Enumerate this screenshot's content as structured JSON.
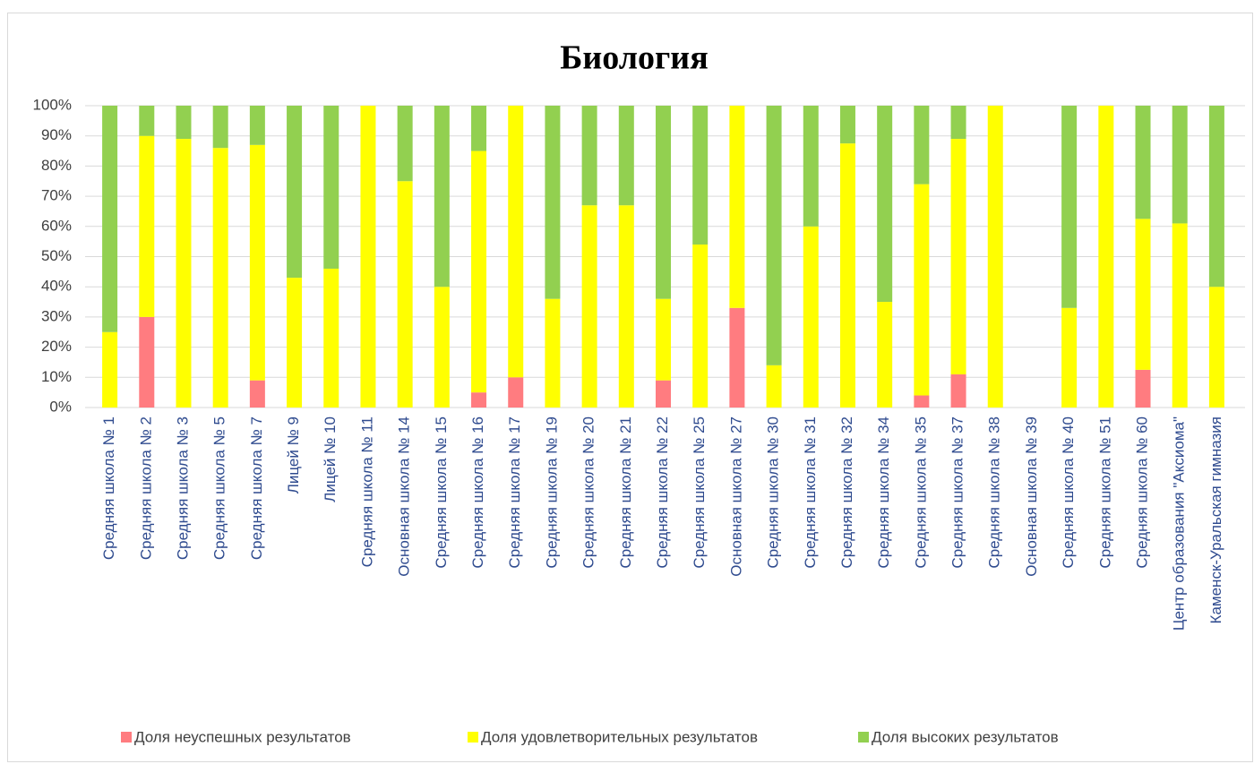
{
  "chart_data": {
    "type": "stacked_bar",
    "title": "Биология",
    "categories": [
      "Средняя школа № 1",
      "Средняя школа № 2",
      "Средняя школа № 3",
      "Средняя школа № 5",
      "Средняя школа № 7",
      "Лицей № 9",
      "Лицей № 10",
      "Средняя школа № 11",
      "Основная школа № 14",
      "Средняя школа № 15",
      "Средняя школа № 16",
      "Средняя школа № 17",
      "Средняя школа № 19",
      "Средняя школа № 20",
      "Средняя школа № 21",
      "Средняя школа № 22",
      "Средняя школа № 25",
      "Основная школа № 27",
      "Средняя школа № 30",
      "Средняя школа № 31",
      "Средняя школа № 32",
      "Средняя школа № 34",
      "Средняя школа № 35",
      "Средняя школа № 37",
      "Средняя школа № 38",
      "Основная школа № 39",
      "Средняя школа № 40",
      "Средняя школа № 51",
      "Средняя школа № 60",
      "Центр образования \"Аксиома\"",
      "Каменск-Уральская гимназия"
    ],
    "series": [
      {
        "name": "Доля неуспешных результатов",
        "color": "#ff7c80",
        "values": [
          0,
          30,
          0,
          0,
          9,
          0,
          0,
          0,
          0,
          0,
          5,
          10,
          0,
          0,
          0,
          9,
          0,
          33,
          0,
          0,
          0,
          0,
          4,
          11,
          0,
          0,
          0,
          0,
          12.5,
          0,
          0
        ]
      },
      {
        "name": "Доля удовлетворительных результатов",
        "color": "#ffff00",
        "values": [
          25,
          60,
          89,
          86,
          78,
          43,
          46,
          100,
          75,
          40,
          80,
          90,
          36,
          67,
          67,
          27,
          54,
          67,
          14,
          60,
          87.5,
          35,
          70,
          78,
          100,
          0,
          33,
          100,
          50,
          61,
          40
        ]
      },
      {
        "name": "Доля высоких результатов",
        "color": "#92d050",
        "values": [
          75,
          10,
          11,
          14,
          13,
          57,
          54,
          0,
          25,
          60,
          15,
          0,
          64,
          33,
          33,
          64,
          46,
          0,
          86,
          40,
          12.5,
          65,
          26,
          11,
          0,
          0,
          67,
          0,
          37.5,
          39,
          60
        ]
      }
    ],
    "ylim": [
      0,
      100
    ],
    "yticks": [
      {
        "value": 0,
        "label": "0%"
      },
      {
        "value": 10,
        "label": "10%"
      },
      {
        "value": 20,
        "label": "20%"
      },
      {
        "value": 30,
        "label": "30%"
      },
      {
        "value": 40,
        "label": "40%"
      },
      {
        "value": 50,
        "label": "50%"
      },
      {
        "value": 60,
        "label": "60%"
      },
      {
        "value": 70,
        "label": "70%"
      },
      {
        "value": 80,
        "label": "80%"
      },
      {
        "value": 90,
        "label": "90%"
      },
      {
        "value": 100,
        "label": "100%"
      }
    ],
    "grid": true,
    "legend": "bottom"
  }
}
